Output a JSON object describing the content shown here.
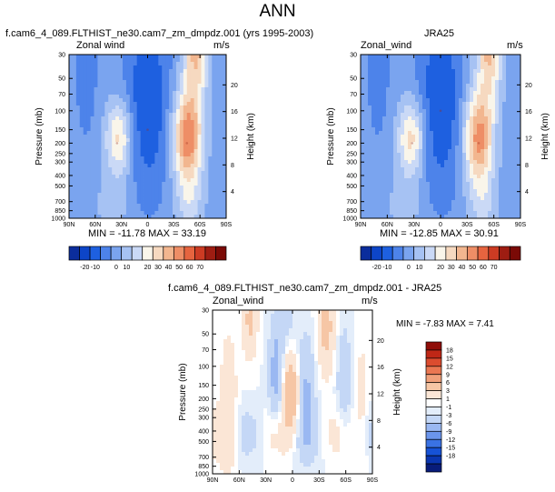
{
  "main_title": "ANN",
  "colors": {
    "zonal_wind": [
      "#0b2d9c",
      "#0d45c8",
      "#1e60e0",
      "#4d83ea",
      "#7aa4ef",
      "#a6c2f3",
      "#cad9f6",
      "#f9f5ea",
      "#f6d9c0",
      "#f2b68f",
      "#ee8e66",
      "#e6643f",
      "#cc3b23",
      "#9e1d12",
      "#7a0a06"
    ],
    "difference": [
      "#081c7a",
      "#0a36b0",
      "#1652d6",
      "#3a72e3",
      "#6b95ec",
      "#9ab8f2",
      "#c4d7f6",
      "#e3edfa",
      "#ffffff",
      "#fbe6d6",
      "#f6c6a5",
      "#f0a07a",
      "#ea7752",
      "#dc4c2f",
      "#bf2716",
      "#8f0d08"
    ]
  },
  "chart_data": [
    {
      "type": "heatmap",
      "title": "f.cam6_4_089.FLTHIST_ne30.cam7_zm_dmpdz.001 (yrs 1995-2003)",
      "left_label": "Zonal wind",
      "right_label": "m/s",
      "xlabel": "",
      "ylabel": "Pressure (mb)",
      "ylabel_right": "Height (km)",
      "x_ticks": [
        "90N",
        "60N",
        "30N",
        "0",
        "30S",
        "60S",
        "90S"
      ],
      "y_ticks": [
        "30",
        "50",
        "70",
        "100",
        "150",
        "200",
        "250",
        "300",
        "400",
        "500",
        "700",
        "850",
        "1000"
      ],
      "y_ticks_right": [
        "20",
        "16",
        "12",
        "8",
        "4"
      ],
      "stats": "MIN = -11.78  MAX = 33.19",
      "min": -11.78,
      "max": 33.19,
      "levels": [
        -20,
        -10,
        0,
        10,
        20,
        30,
        40,
        50,
        60,
        70
      ],
      "features": [
        {
          "lat": 35,
          "p": 200,
          "value": 20
        },
        {
          "lat": -45,
          "p": 200,
          "value": 33
        },
        {
          "lat": 0,
          "p": 150,
          "value": -11
        }
      ]
    },
    {
      "type": "heatmap",
      "title": "JRA25",
      "left_label": "Zonal_wind",
      "right_label": "m/s",
      "xlabel": "",
      "ylabel": "Pressure (mb)",
      "ylabel_right": "Height (km)",
      "x_ticks": [
        "90N",
        "60N",
        "30N",
        "0",
        "30S",
        "60S",
        "90S"
      ],
      "y_ticks": [
        "30",
        "50",
        "70",
        "100",
        "150",
        "200",
        "250",
        "300",
        "400",
        "500",
        "700",
        "850",
        "1000"
      ],
      "y_ticks_right": [
        "20",
        "16",
        "12",
        "8",
        "4"
      ],
      "stats": "MIN = -12.85  MAX = 30.91",
      "min": -12.85,
      "max": 30.91,
      "levels": [
        -20,
        -10,
        0,
        10,
        20,
        30,
        40,
        50,
        60,
        70
      ],
      "features": [
        {
          "lat": 32,
          "p": 200,
          "value": 20
        },
        {
          "lat": -43,
          "p": 200,
          "value": 31
        },
        {
          "lat": 0,
          "p": 100,
          "value": -12
        }
      ]
    },
    {
      "type": "heatmap",
      "title": "f.cam6_4_089.FLTHIST_ne30.cam7_zm_dmpdz.001 - JRA25",
      "left_label": "Zonal_wind",
      "right_label": "m/s",
      "xlabel": "",
      "ylabel": "Pressure (mb)",
      "ylabel_right": "Height (km)",
      "x_ticks": [
        "90N",
        "60N",
        "30N",
        "0",
        "30S",
        "60S",
        "90S"
      ],
      "y_ticks": [
        "30",
        "50",
        "70",
        "100",
        "150",
        "200",
        "250",
        "300",
        "400",
        "500",
        "700",
        "850",
        "1000"
      ],
      "y_ticks_right": [
        "20",
        "16",
        "12",
        "8",
        "4"
      ],
      "stats": "MIN = -7.83  MAX =  7.41",
      "min": -7.83,
      "max": 7.41,
      "levels": [
        -18,
        -15,
        -12,
        -9,
        -6,
        -3,
        -1,
        0,
        1,
        3,
        6,
        9,
        12,
        15,
        18
      ],
      "features": [
        {
          "lat": 0,
          "p": 200,
          "value": 6
        },
        {
          "lat": -35,
          "p": 50,
          "value": 4
        },
        {
          "lat": 15,
          "p": 100,
          "value": -4
        }
      ]
    }
  ],
  "colorbars": {
    "zonal_wind_labels": [
      "-20",
      "-10",
      "0",
      "10",
      "20",
      "30",
      "40",
      "50",
      "60",
      "70"
    ],
    "difference_labels": [
      "18",
      "15",
      "12",
      "9",
      "6",
      "3",
      "1",
      "-1",
      "-3",
      "-6",
      "-9",
      "-12",
      "-15",
      "-18"
    ]
  }
}
